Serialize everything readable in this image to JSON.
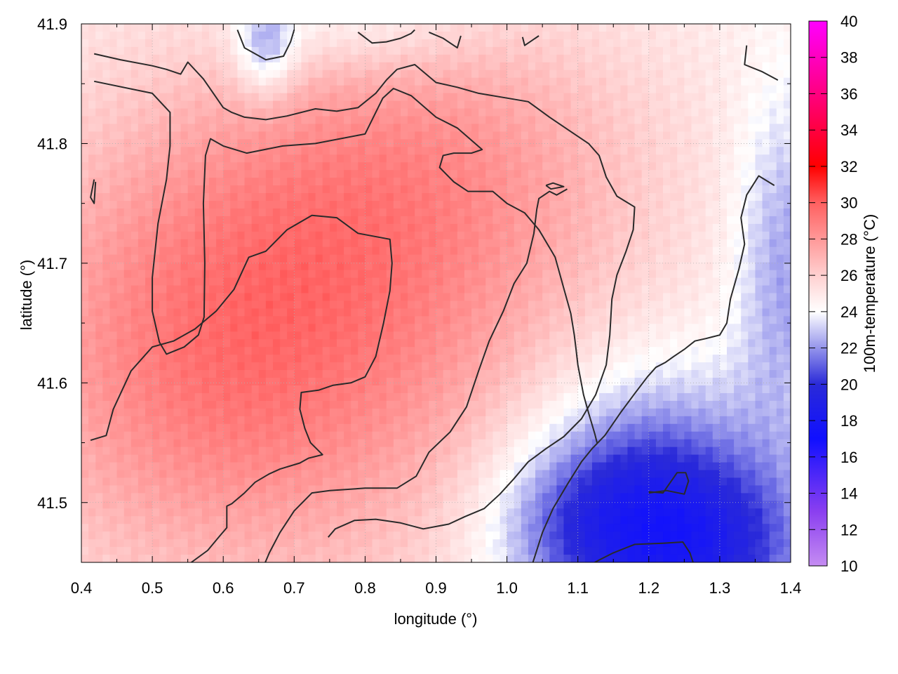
{
  "chart_data": {
    "type": "heatmap",
    "title": "",
    "xlabel": "longitude (°)",
    "ylabel": "latitude (°)",
    "xlim": [
      0.4,
      1.4
    ],
    "ylim": [
      41.45,
      41.9
    ],
    "x_ticks": [
      "0.4",
      "0.5",
      "0.6",
      "0.7",
      "0.8",
      "0.9",
      "1.0",
      "1.1",
      "1.2",
      "1.3",
      "1.4"
    ],
    "y_ticks": [
      "41.5",
      "41.6",
      "41.7",
      "41.8",
      "41.9"
    ],
    "grid": true,
    "colorbar": {
      "label": "100m-temperature (°C)",
      "range": [
        10,
        40
      ],
      "ticks": [
        "10",
        "12",
        "14",
        "16",
        "18",
        "20",
        "22",
        "24",
        "26",
        "28",
        "30",
        "32",
        "34",
        "36",
        "38",
        "40"
      ],
      "colors": [
        {
          "value": 10,
          "color": "#c58cf2"
        },
        {
          "value": 13,
          "color": "#8a3ff0"
        },
        {
          "value": 17,
          "color": "#1010ff"
        },
        {
          "value": 20,
          "color": "#2a2ad8"
        },
        {
          "value": 24,
          "color": "#ffffff"
        },
        {
          "value": 26,
          "color": "#ffd0d0"
        },
        {
          "value": 30,
          "color": "#ff6060"
        },
        {
          "value": 32,
          "color": "#ff0000"
        },
        {
          "value": 36,
          "color": "#ff0080"
        },
        {
          "value": 40,
          "color": "#ff00ff"
        }
      ]
    },
    "field": {
      "base_temperature": 24.5,
      "warm_blobs": [
        {
          "lon": 0.7,
          "lat": 41.64,
          "sigma_lon": 0.3,
          "sigma_lat": 0.16,
          "amp": 3.5
        },
        {
          "lon": 0.55,
          "lat": 41.6,
          "sigma_lon": 0.2,
          "sigma_lat": 0.12,
          "amp": 1.5
        },
        {
          "lon": 0.85,
          "lat": 41.75,
          "sigma_lon": 0.25,
          "sigma_lat": 0.1,
          "amp": 1.5
        },
        {
          "lon": 0.95,
          "lat": 41.82,
          "sigma_lon": 0.2,
          "sigma_lat": 0.08,
          "amp": 1.0
        }
      ],
      "cool_blobs": [
        {
          "lon": 1.2,
          "lat": 41.5,
          "sigma_lon": 0.12,
          "sigma_lat": 0.08,
          "amp": 4.5
        },
        {
          "lon": 1.1,
          "lat": 41.48,
          "sigma_lon": 0.1,
          "sigma_lat": 0.05,
          "amp": 2.5
        },
        {
          "lon": 1.3,
          "lat": 41.46,
          "sigma_lon": 0.1,
          "sigma_lat": 0.05,
          "amp": 3.0
        },
        {
          "lon": 1.39,
          "lat": 41.7,
          "sigma_lon": 0.05,
          "sigma_lat": 0.1,
          "amp": 2.5
        },
        {
          "lon": 0.78,
          "lat": 41.9,
          "sigma_lon": 0.12,
          "sigma_lat": 0.03,
          "amp": 1.5
        },
        {
          "lon": 0.66,
          "lat": 41.88,
          "sigma_lon": 0.03,
          "sigma_lat": 0.03,
          "amp": 3.0
        }
      ]
    },
    "contours": [
      [
        [
          0.418,
          41.852
        ],
        [
          0.5,
          41.842
        ],
        [
          0.525,
          41.826
        ],
        [
          0.525,
          41.798
        ],
        [
          0.52,
          41.77
        ],
        [
          0.508,
          41.733
        ],
        [
          0.5,
          41.688
        ],
        [
          0.5,
          41.66
        ],
        [
          0.51,
          41.634
        ],
        [
          0.52,
          41.624
        ],
        [
          0.545,
          41.63
        ],
        [
          0.565,
          41.64
        ],
        [
          0.573,
          41.655
        ],
        [
          0.574,
          41.7
        ],
        [
          0.572,
          41.75
        ],
        [
          0.575,
          41.79
        ],
        [
          0.582,
          41.804
        ],
        [
          0.6,
          41.798
        ],
        [
          0.633,
          41.792
        ],
        [
          0.684,
          41.798
        ],
        [
          0.73,
          41.8
        ],
        [
          0.8,
          41.808
        ],
        [
          0.825,
          41.838
        ],
        [
          0.84,
          41.846
        ],
        [
          0.865,
          41.84
        ],
        [
          0.9,
          41.822
        ],
        [
          0.93,
          41.813
        ],
        [
          0.965,
          41.795
        ],
        [
          0.95,
          41.792
        ],
        [
          0.925,
          41.792
        ],
        [
          0.91,
          41.79
        ],
        [
          0.905,
          41.78
        ],
        [
          0.925,
          41.768
        ],
        [
          0.945,
          41.76
        ],
        [
          0.98,
          41.76
        ],
        [
          1.0,
          41.75
        ],
        [
          1.025,
          41.742
        ],
        [
          1.045,
          41.728
        ],
        [
          1.05,
          41.723
        ],
        [
          1.056,
          41.717
        ],
        [
          1.063,
          41.71
        ],
        [
          1.068,
          41.705
        ],
        [
          1.082,
          41.675
        ],
        [
          1.09,
          41.658
        ],
        [
          1.095,
          41.64
        ],
        [
          1.097,
          41.63
        ],
        [
          1.1,
          41.615
        ],
        [
          1.108,
          41.59
        ],
        [
          1.115,
          41.575
        ],
        [
          1.124,
          41.557
        ],
        [
          1.127,
          41.55
        ]
      ],
      [
        [
          0.418,
          41.875
        ],
        [
          0.455,
          41.87
        ],
        [
          0.5,
          41.865
        ],
        [
          0.52,
          41.862
        ],
        [
          0.54,
          41.858
        ],
        [
          0.55,
          41.868
        ],
        [
          0.572,
          41.854
        ],
        [
          0.6,
          41.83
        ],
        [
          0.612,
          41.826
        ],
        [
          0.63,
          41.822
        ],
        [
          0.66,
          41.82
        ],
        [
          0.69,
          41.823
        ],
        [
          0.73,
          41.829
        ],
        [
          0.76,
          41.827
        ],
        [
          0.79,
          41.83
        ],
        [
          0.815,
          41.842
        ],
        [
          0.83,
          41.853
        ],
        [
          0.845,
          41.862
        ],
        [
          0.87,
          41.866
        ],
        [
          0.89,
          41.856
        ],
        [
          0.9,
          41.851
        ],
        [
          0.93,
          41.847
        ],
        [
          0.96,
          41.842
        ],
        [
          1.0,
          41.838
        ],
        [
          1.03,
          41.835
        ],
        [
          1.06,
          41.822
        ],
        [
          1.09,
          41.81
        ],
        [
          1.115,
          41.8
        ],
        [
          1.13,
          41.79
        ],
        [
          1.14,
          41.772
        ],
        [
          1.155,
          41.756
        ],
        [
          1.18,
          41.747
        ],
        [
          1.178,
          41.728
        ],
        [
          1.168,
          41.71
        ],
        [
          1.155,
          41.69
        ],
        [
          1.148,
          41.67
        ],
        [
          1.145,
          41.64
        ],
        [
          1.14,
          41.615
        ],
        [
          1.125,
          41.59
        ],
        [
          1.105,
          41.57
        ],
        [
          1.08,
          41.555
        ],
        [
          1.055,
          41.545
        ],
        [
          1.03,
          41.534
        ],
        [
          1.01,
          41.52
        ],
        [
          0.99,
          41.507
        ],
        [
          0.968,
          41.495
        ],
        [
          0.94,
          41.488
        ],
        [
          0.918,
          41.482
        ],
        [
          0.882,
          41.478
        ],
        [
          0.85,
          41.483
        ],
        [
          0.815,
          41.486
        ],
        [
          0.785,
          41.485
        ],
        [
          0.758,
          41.478
        ],
        [
          0.748,
          41.471
        ]
      ],
      [
        [
          0.413,
          41.552
        ],
        [
          0.435,
          41.556
        ],
        [
          0.445,
          41.578
        ],
        [
          0.47,
          41.61
        ],
        [
          0.5,
          41.63
        ],
        [
          0.53,
          41.635
        ],
        [
          0.56,
          41.645
        ],
        [
          0.59,
          41.66
        ],
        [
          0.615,
          41.678
        ],
        [
          0.636,
          41.705
        ],
        [
          0.66,
          41.71
        ],
        [
          0.69,
          41.728
        ],
        [
          0.725,
          41.74
        ],
        [
          0.76,
          41.738
        ],
        [
          0.79,
          41.725
        ],
        [
          0.835,
          41.72
        ],
        [
          0.838,
          41.7
        ],
        [
          0.835,
          41.677
        ],
        [
          0.826,
          41.65
        ],
        [
          0.815,
          41.622
        ],
        [
          0.8,
          41.605
        ],
        [
          0.78,
          41.6
        ],
        [
          0.755,
          41.598
        ],
        [
          0.735,
          41.594
        ],
        [
          0.71,
          41.592
        ],
        [
          0.708,
          41.578
        ],
        [
          0.715,
          41.562
        ],
        [
          0.723,
          41.55
        ],
        [
          0.74,
          41.54
        ],
        [
          0.72,
          41.537
        ],
        [
          0.708,
          41.533
        ],
        [
          0.68,
          41.528
        ],
        [
          0.665,
          41.524
        ],
        [
          0.645,
          41.517
        ],
        [
          0.63,
          41.508
        ],
        [
          0.612,
          41.499
        ],
        [
          0.605,
          41.497
        ],
        [
          0.605,
          41.479
        ],
        [
          0.595,
          41.472
        ],
        [
          0.578,
          41.46
        ],
        [
          0.555,
          41.45
        ],
        [
          0.54,
          41.44
        ],
        [
          0.525,
          41.437
        ]
      ],
      [
        [
          0.655,
          41.444
        ],
        [
          0.665,
          41.458
        ],
        [
          0.68,
          41.475
        ],
        [
          0.7,
          41.493
        ],
        [
          0.725,
          41.508
        ],
        [
          0.75,
          41.51
        ],
        [
          0.8,
          41.512
        ],
        [
          0.845,
          41.512
        ],
        [
          0.872,
          41.522
        ],
        [
          0.89,
          41.542
        ],
        [
          0.92,
          41.559
        ],
        [
          0.943,
          41.58
        ],
        [
          0.96,
          41.61
        ],
        [
          0.975,
          41.635
        ],
        [
          0.995,
          41.66
        ],
        [
          1.01,
          41.683
        ],
        [
          1.028,
          41.7
        ],
        [
          1.038,
          41.725
        ],
        [
          1.042,
          41.745
        ],
        [
          1.045,
          41.754
        ],
        [
          1.06,
          41.76
        ],
        [
          1.07,
          41.757
        ],
        [
          1.085,
          41.762
        ]
      ],
      [
        [
          1.022,
          41.432
        ],
        [
          1.035,
          41.447
        ],
        [
          1.05,
          41.475
        ],
        [
          1.065,
          41.495
        ],
        [
          1.085,
          41.515
        ],
        [
          1.105,
          41.534
        ],
        [
          1.12,
          41.545
        ],
        [
          1.138,
          41.556
        ],
        [
          1.16,
          41.575
        ],
        [
          1.18,
          41.591
        ],
        [
          1.198,
          41.605
        ],
        [
          1.21,
          41.613
        ],
        [
          1.223,
          41.617
        ],
        [
          1.235,
          41.622
        ],
        [
          1.25,
          41.628
        ],
        [
          1.265,
          41.635
        ],
        [
          1.28,
          41.637
        ],
        [
          1.3,
          41.64
        ],
        [
          1.31,
          41.65
        ],
        [
          1.315,
          41.67
        ],
        [
          1.327,
          41.695
        ],
        [
          1.335,
          41.716
        ],
        [
          1.33,
          41.738
        ],
        [
          1.338,
          41.757
        ],
        [
          1.355,
          41.773
        ],
        [
          1.377,
          41.765
        ]
      ],
      [
        [
          1.2,
          41.508
        ],
        [
          1.225,
          41.51
        ],
        [
          1.25,
          41.507
        ],
        [
          1.256,
          41.518
        ],
        [
          1.252,
          41.525
        ],
        [
          1.24,
          41.525
        ],
        [
          1.22,
          41.508
        ],
        [
          1.2,
          41.509
        ]
      ],
      [
        [
          1.115,
          41.447
        ],
        [
          1.13,
          41.452
        ],
        [
          1.15,
          41.458
        ],
        [
          1.18,
          41.465
        ],
        [
          1.22,
          41.466
        ],
        [
          1.248,
          41.467
        ],
        [
          1.258,
          41.458
        ],
        [
          1.268,
          41.44
        ]
      ],
      [
        [
          1.055,
          41.765
        ],
        [
          1.065,
          41.767
        ],
        [
          1.08,
          41.764
        ],
        [
          1.062,
          41.762
        ],
        [
          1.055,
          41.765
        ]
      ],
      [
        [
          0.62,
          41.895
        ],
        [
          0.63,
          41.88
        ],
        [
          0.66,
          41.87
        ],
        [
          0.685,
          41.873
        ],
        [
          0.695,
          41.885
        ],
        [
          0.7,
          41.895
        ]
      ],
      [
        [
          0.79,
          41.893
        ],
        [
          0.81,
          41.884
        ],
        [
          0.83,
          41.885
        ],
        [
          0.85,
          41.888
        ],
        [
          0.865,
          41.892
        ],
        [
          0.87,
          41.895
        ]
      ],
      [
        [
          0.89,
          41.893
        ],
        [
          0.91,
          41.888
        ],
        [
          0.93,
          41.88
        ],
        [
          0.935,
          41.89
        ]
      ],
      [
        [
          1.022,
          41.889
        ],
        [
          1.025,
          41.882
        ],
        [
          1.045,
          41.89
        ]
      ],
      [
        [
          1.338,
          41.882
        ],
        [
          1.335,
          41.866
        ],
        [
          1.36,
          41.86
        ],
        [
          1.382,
          41.853
        ]
      ],
      [
        [
          0.42,
          41.768
        ],
        [
          0.418,
          41.75
        ],
        [
          0.413,
          41.755
        ],
        [
          0.418,
          41.77
        ]
      ]
    ]
  }
}
